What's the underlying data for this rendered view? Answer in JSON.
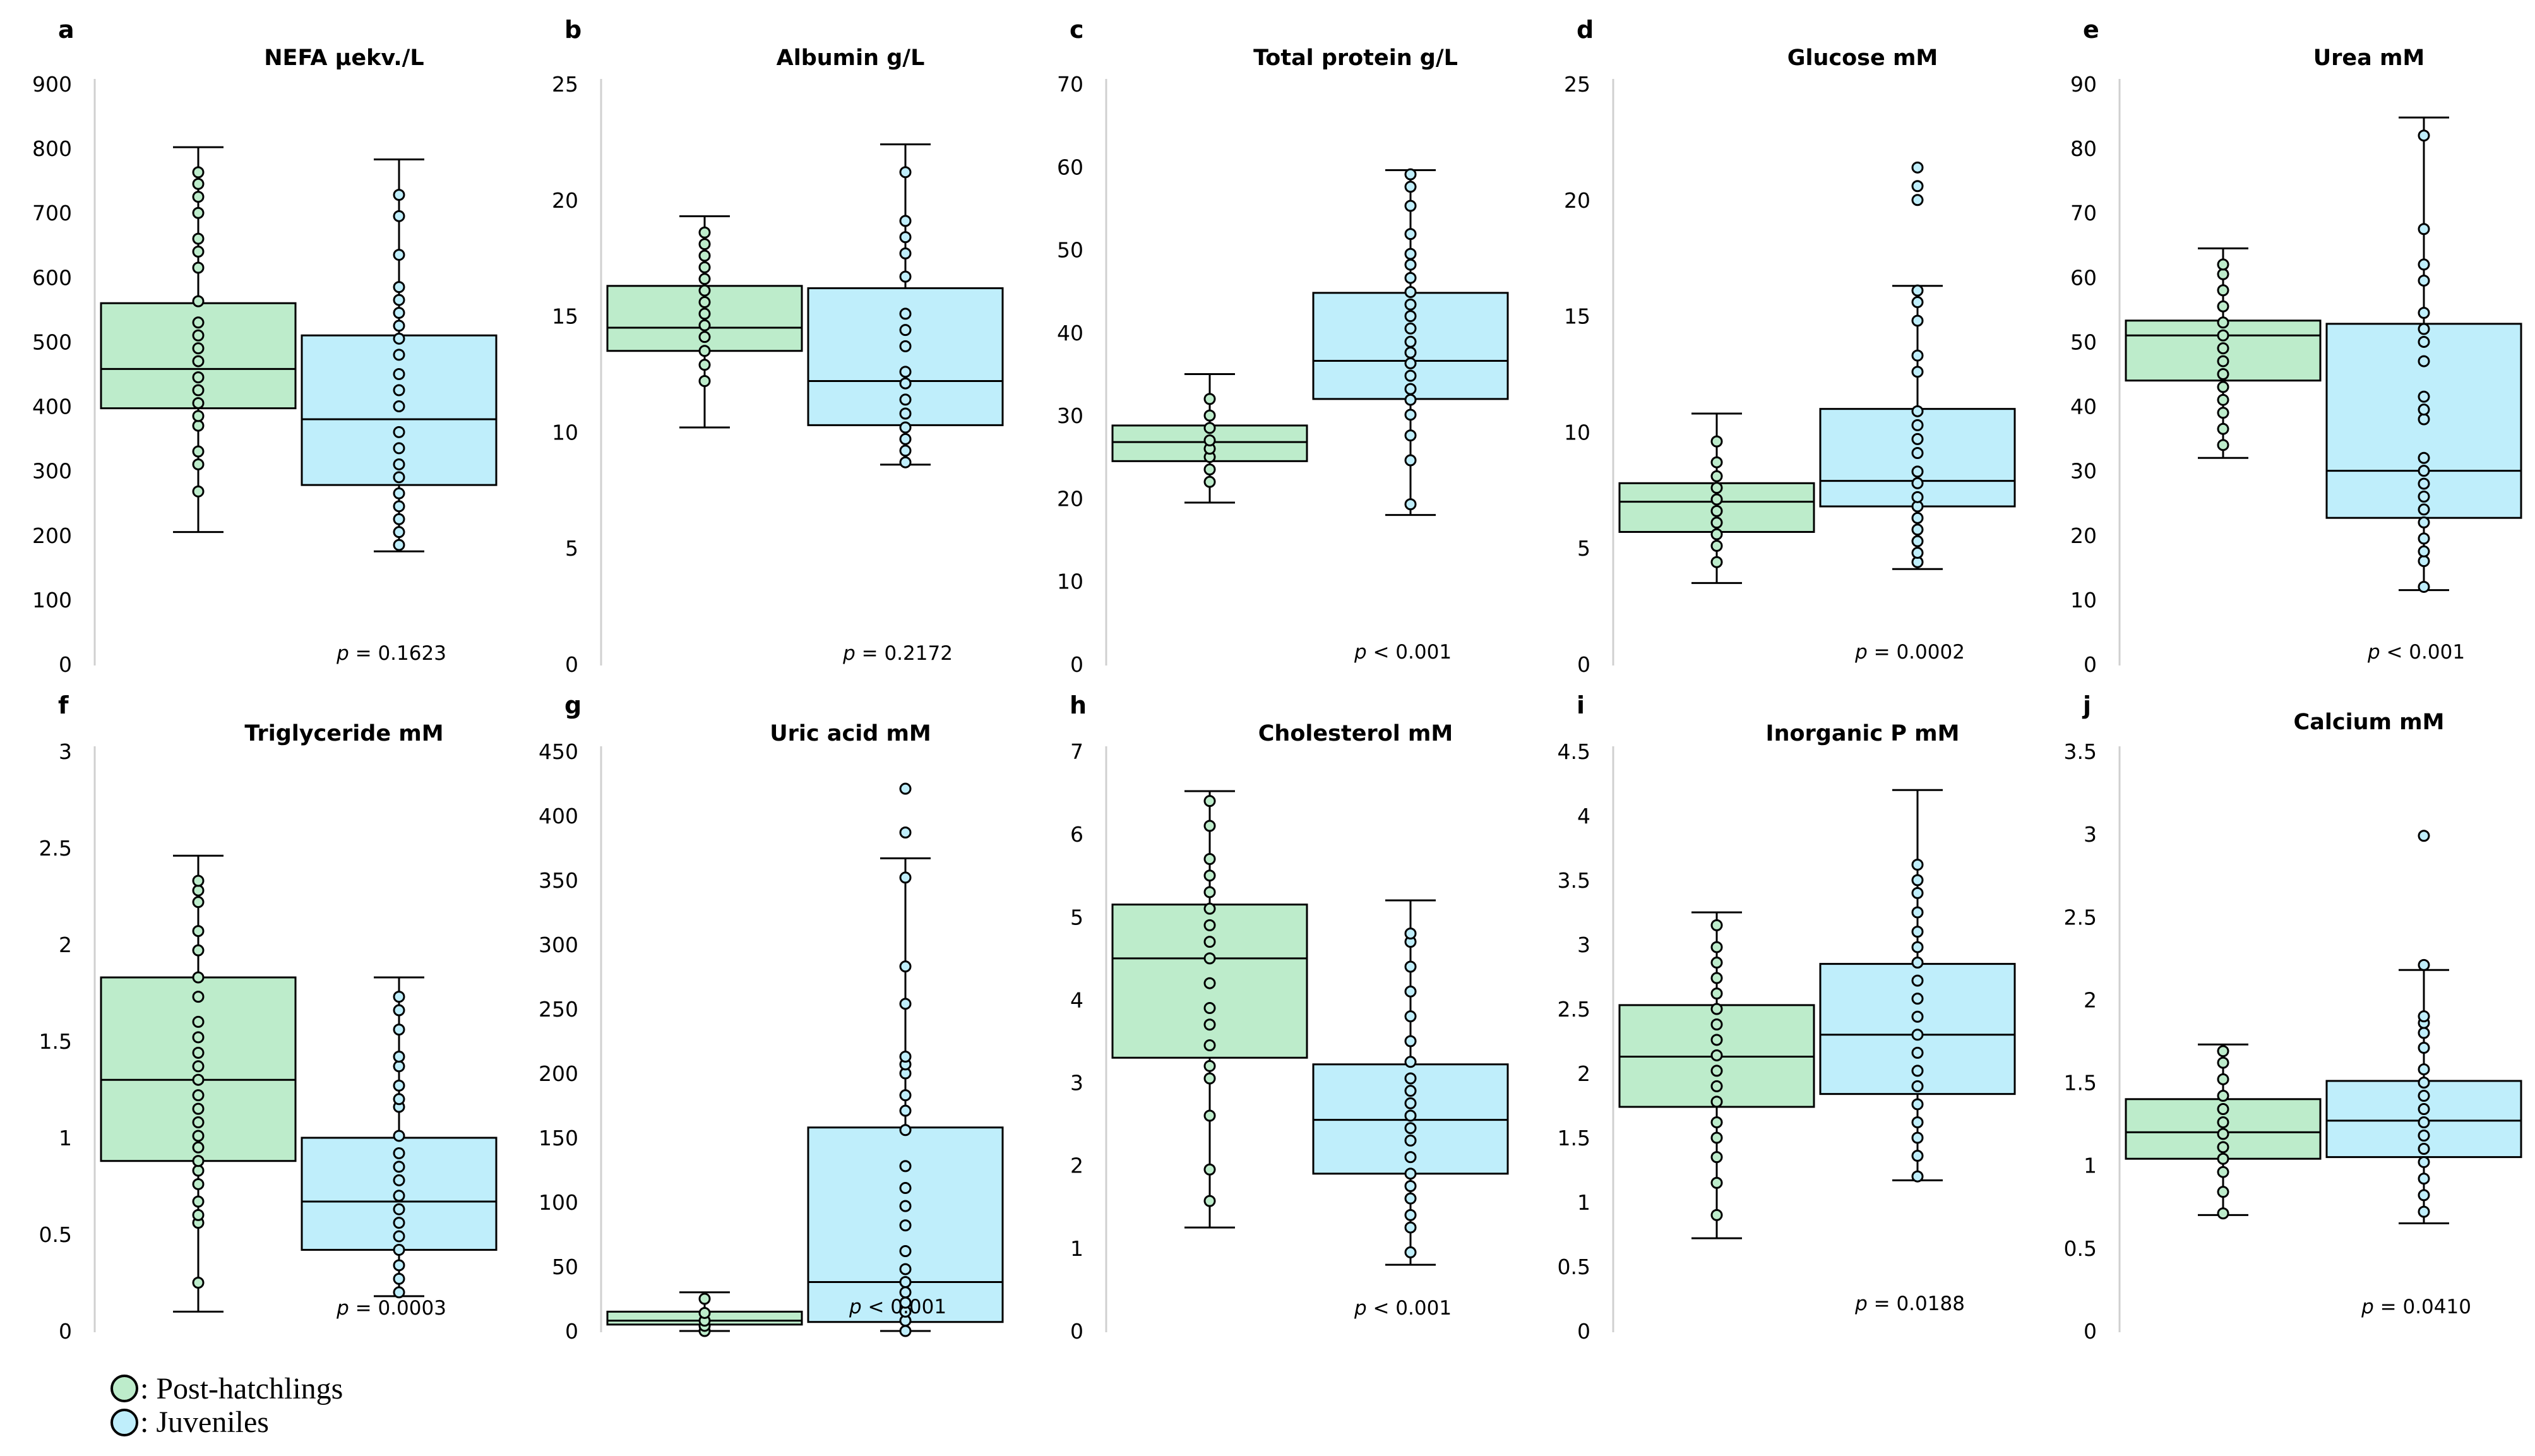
{
  "colors": {
    "post_hatchlings": "#bdeccb",
    "juveniles": "#bfeefb"
  },
  "legend": [
    {
      "label": ": Post-hatchlings",
      "color_key": "post_hatchlings"
    },
    {
      "label": ": Juveniles",
      "color_key": "juveniles"
    }
  ],
  "chart_data": [
    {
      "letter": "a",
      "title": "NEFA μekv./L",
      "type": "box",
      "ylim": [
        0,
        900
      ],
      "ticks": [
        "0",
        "100",
        "200",
        "300",
        "400",
        "500",
        "600",
        "700",
        "800",
        "900"
      ],
      "p_prefix": "p",
      "p_text": " = 0.1623",
      "series": [
        {
          "name": "Post-hatchlings",
          "min": 205,
          "q1": 397,
          "median": 458,
          "q3": 560,
          "max": 802,
          "points": [
            268,
            310,
            330,
            370,
            385,
            405,
            425,
            445,
            470,
            490,
            510,
            530,
            563,
            615,
            640,
            660,
            700,
            725,
            745,
            763
          ]
        },
        {
          "name": "Juveniles",
          "min": 175,
          "q1": 278,
          "median": 380,
          "q3": 510,
          "max": 783,
          "points": [
            185,
            205,
            225,
            245,
            265,
            290,
            310,
            335,
            360,
            400,
            425,
            450,
            480,
            505,
            525,
            545,
            565,
            585,
            635,
            695,
            728
          ]
        }
      ]
    },
    {
      "letter": "b",
      "title": "Albumin g/L",
      "type": "box",
      "ylim": [
        0,
        25
      ],
      "ticks": [
        "0",
        "5",
        "10",
        "15",
        "20",
        "25"
      ],
      "p_prefix": "p",
      "p_text": " = 0.2172",
      "series": [
        {
          "name": "Post-hatchlings",
          "min": 10.2,
          "q1": 13.5,
          "median": 14.5,
          "q3": 16.3,
          "max": 19.3,
          "points": [
            12.2,
            12.9,
            13.5,
            14.1,
            14.6,
            15.1,
            15.6,
            16.1,
            16.6,
            17.1,
            17.6,
            18.1,
            18.6
          ]
        },
        {
          "name": "Juveniles",
          "min": 8.6,
          "q1": 10.3,
          "median": 12.2,
          "q3": 16.2,
          "max": 22.4,
          "points": [
            8.7,
            9.2,
            9.7,
            10.2,
            10.8,
            11.4,
            12.1,
            12.6,
            13.7,
            14.4,
            15.1,
            16.7,
            17.7,
            18.4,
            19.1,
            21.2
          ]
        }
      ]
    },
    {
      "letter": "c",
      "title": "Total protein g/L",
      "type": "box",
      "ylim": [
        0,
        70
      ],
      "ticks": [
        "0",
        "10",
        "20",
        "30",
        "40",
        "50",
        "60",
        "70"
      ],
      "p_prefix": "p",
      "p_text": " < 0.001",
      "series": [
        {
          "name": "Post-hatchlings",
          "min": 19.5,
          "q1": 24.5,
          "median": 26.8,
          "q3": 28.8,
          "max": 35,
          "points": [
            22,
            23.5,
            25,
            26,
            27,
            28.5,
            30,
            32
          ]
        },
        {
          "name": "Juveniles",
          "min": 18,
          "q1": 32,
          "median": 36.6,
          "q3": 44.8,
          "max": 59.6,
          "points": [
            19.3,
            24.6,
            27.6,
            30.1,
            31.9,
            33.2,
            34.8,
            36.3,
            37.6,
            38.9,
            40.5,
            42,
            43.4,
            44.9,
            46.6,
            48.2,
            49.5,
            51.9,
            55.3,
            57.6,
            59.1
          ]
        }
      ]
    },
    {
      "letter": "d",
      "title": "Glucose mM",
      "type": "box",
      "ylim": [
        0,
        25
      ],
      "ticks": [
        "0",
        "5",
        "10",
        "15",
        "20",
        "25"
      ],
      "p_prefix": "p",
      "p_text": " = 0.0002",
      "series": [
        {
          "name": "Post-hatchlings",
          "min": 3.5,
          "q1": 5.7,
          "median": 7,
          "q3": 7.8,
          "max": 10.8,
          "points": [
            4.4,
            5.1,
            5.6,
            6.1,
            6.6,
            7.1,
            7.6,
            8.1,
            8.7,
            9.6
          ]
        },
        {
          "name": "Juveniles",
          "min": 4.1,
          "q1": 6.8,
          "median": 7.9,
          "q3": 11,
          "max": 16.3,
          "points": [
            4.4,
            4.8,
            5.3,
            5.8,
            6.3,
            6.8,
            7.2,
            7.8,
            8.3,
            9.1,
            9.7,
            10.3,
            10.9,
            12.6,
            13.3,
            14.8,
            15.6,
            16.1,
            20,
            20.6,
            21.4
          ]
        }
      ]
    },
    {
      "letter": "e",
      "title": "Urea mM",
      "type": "box",
      "ylim": [
        0,
        90
      ],
      "ticks": [
        "0",
        "10",
        "20",
        "30",
        "40",
        "50",
        "60",
        "70",
        "80",
        "90"
      ],
      "p_prefix": "p",
      "p_text": " < 0.001",
      "series": [
        {
          "name": "Post-hatchlings",
          "min": 32,
          "q1": 44,
          "median": 51,
          "q3": 53.3,
          "max": 64.5,
          "points": [
            34,
            36.5,
            39,
            41,
            43,
            45,
            47,
            49,
            51,
            53,
            55.5,
            58,
            60.5,
            62
          ]
        },
        {
          "name": "Juveniles",
          "min": 11.5,
          "q1": 22.7,
          "median": 30,
          "q3": 52.8,
          "max": 84.8,
          "points": [
            12,
            16,
            17.5,
            19.5,
            22,
            24,
            26,
            28,
            30,
            32,
            38,
            39.5,
            41.5,
            47,
            50,
            52,
            54.5,
            59.5,
            62,
            67.5,
            82
          ]
        }
      ]
    },
    {
      "letter": "f",
      "title": "Triglyceride mM",
      "type": "box",
      "ylim": [
        0,
        3
      ],
      "ticks": [
        "0",
        "0.5",
        "1",
        "1.5",
        "2",
        "2.5",
        "3"
      ],
      "p_prefix": "p",
      "p_text": " = 0.0003",
      "series": [
        {
          "name": "Post-hatchlings",
          "min": 0.1,
          "q1": 0.88,
          "median": 1.3,
          "q3": 1.83,
          "max": 2.46,
          "points": [
            0.25,
            0.56,
            0.6,
            0.67,
            0.76,
            0.83,
            0.88,
            0.95,
            1.01,
            1.08,
            1.15,
            1.22,
            1.3,
            1.37,
            1.44,
            1.52,
            1.6,
            1.73,
            1.83,
            1.97,
            2.07,
            2.22,
            2.28,
            2.33
          ]
        },
        {
          "name": "Juveniles",
          "min": 0.18,
          "q1": 0.42,
          "median": 0.67,
          "q3": 1.0,
          "max": 1.83,
          "points": [
            0.2,
            0.27,
            0.34,
            0.42,
            0.49,
            0.56,
            0.63,
            0.7,
            0.78,
            0.85,
            0.92,
            1.01,
            1.16,
            1.2,
            1.27,
            1.37,
            1.42,
            1.56,
            1.66,
            1.73
          ]
        }
      ]
    },
    {
      "letter": "g",
      "title": "Uric acid mM",
      "type": "box",
      "ylim": [
        0,
        450
      ],
      "ticks": [
        "0",
        "50",
        "100",
        "150",
        "200",
        "250",
        "300",
        "350",
        "400",
        "450"
      ],
      "p_prefix": "p",
      "p_text": " < 0.001",
      "series": [
        {
          "name": "Post-hatchlings",
          "min": 0,
          "q1": 5,
          "median": 8,
          "q3": 15,
          "max": 30,
          "points": [
            0,
            4,
            8,
            14,
            25
          ]
        },
        {
          "name": "Juveniles",
          "min": 0,
          "q1": 7,
          "median": 38,
          "q3": 158,
          "max": 367,
          "points": [
            0,
            8,
            15,
            22,
            30,
            38,
            48,
            62,
            82,
            97,
            111,
            128,
            156,
            171,
            183,
            200,
            207,
            213,
            254,
            283,
            352,
            387,
            421
          ]
        }
      ]
    },
    {
      "letter": "h",
      "title": "Cholesterol mM",
      "type": "box",
      "ylim": [
        0,
        7
      ],
      "ticks": [
        "0",
        "1",
        "2",
        "3",
        "4",
        "5",
        "6",
        "7"
      ],
      "p_prefix": "p",
      "p_text": " < 0.001",
      "series": [
        {
          "name": "Post-hatchlings",
          "min": 1.25,
          "q1": 3.3,
          "median": 4.5,
          "q3": 5.15,
          "max": 6.52,
          "points": [
            1.57,
            1.95,
            2.6,
            3.05,
            3.2,
            3.45,
            3.7,
            3.9,
            4.2,
            4.5,
            4.7,
            4.9,
            5.1,
            5.3,
            5.5,
            5.7,
            6.1,
            6.4
          ]
        },
        {
          "name": "Juveniles",
          "min": 0.8,
          "q1": 1.9,
          "median": 2.55,
          "q3": 3.22,
          "max": 5.2,
          "points": [
            0.95,
            1.25,
            1.4,
            1.6,
            1.75,
            1.9,
            2.1,
            2.3,
            2.45,
            2.6,
            2.75,
            2.9,
            3.05,
            3.25,
            3.5,
            3.8,
            4.1,
            4.4,
            4.7,
            4.8
          ]
        }
      ]
    },
    {
      "letter": "i",
      "title": "Inorganic P mM",
      "type": "box",
      "ylim": [
        0,
        4.5
      ],
      "ticks": [
        "0",
        "0.5",
        "1",
        "1.5",
        "2",
        "2.5",
        "3",
        "3.5",
        "4",
        "4.5"
      ],
      "p_prefix": "p",
      "p_text": " = 0.0188",
      "series": [
        {
          "name": "Post-hatchlings",
          "min": 0.72,
          "q1": 1.74,
          "median": 2.13,
          "q3": 2.53,
          "max": 3.25,
          "points": [
            0.9,
            1.15,
            1.35,
            1.5,
            1.62,
            1.78,
            1.9,
            2.02,
            2.14,
            2.26,
            2.38,
            2.5,
            2.62,
            2.74,
            2.86,
            2.98,
            3.15
          ]
        },
        {
          "name": "Juveniles",
          "min": 1.17,
          "q1": 1.84,
          "median": 2.3,
          "q3": 2.85,
          "max": 4.2,
          "points": [
            1.2,
            1.36,
            1.5,
            1.62,
            1.76,
            1.9,
            2.02,
            2.16,
            2.3,
            2.44,
            2.58,
            2.72,
            2.86,
            2.98,
            3.1,
            3.25,
            3.4,
            3.5,
            3.62
          ]
        }
      ]
    },
    {
      "letter": "j",
      "title": "Calcium mM",
      "type": "box",
      "ylim": [
        0,
        3.5
      ],
      "ticks": [
        "0",
        "0.5",
        "1",
        "1.5",
        "2",
        "2.5",
        "3",
        "3.5"
      ],
      "p_prefix": "p",
      "p_text": " = 0.0410",
      "series": [
        {
          "name": "Post-hatchlings",
          "min": 0.7,
          "q1": 1.04,
          "median": 1.2,
          "q3": 1.4,
          "max": 1.73,
          "points": [
            0.71,
            0.84,
            0.96,
            1.04,
            1.11,
            1.19,
            1.26,
            1.34,
            1.42,
            1.52,
            1.62,
            1.69
          ]
        },
        {
          "name": "Juveniles",
          "min": 0.65,
          "q1": 1.05,
          "median": 1.27,
          "q3": 1.51,
          "max": 2.18,
          "points": [
            0.72,
            0.82,
            0.92,
            1.02,
            1.1,
            1.18,
            1.26,
            1.34,
            1.42,
            1.5,
            1.58,
            1.71,
            1.8,
            1.86,
            1.9,
            2.21,
            2.99
          ]
        }
      ]
    }
  ]
}
